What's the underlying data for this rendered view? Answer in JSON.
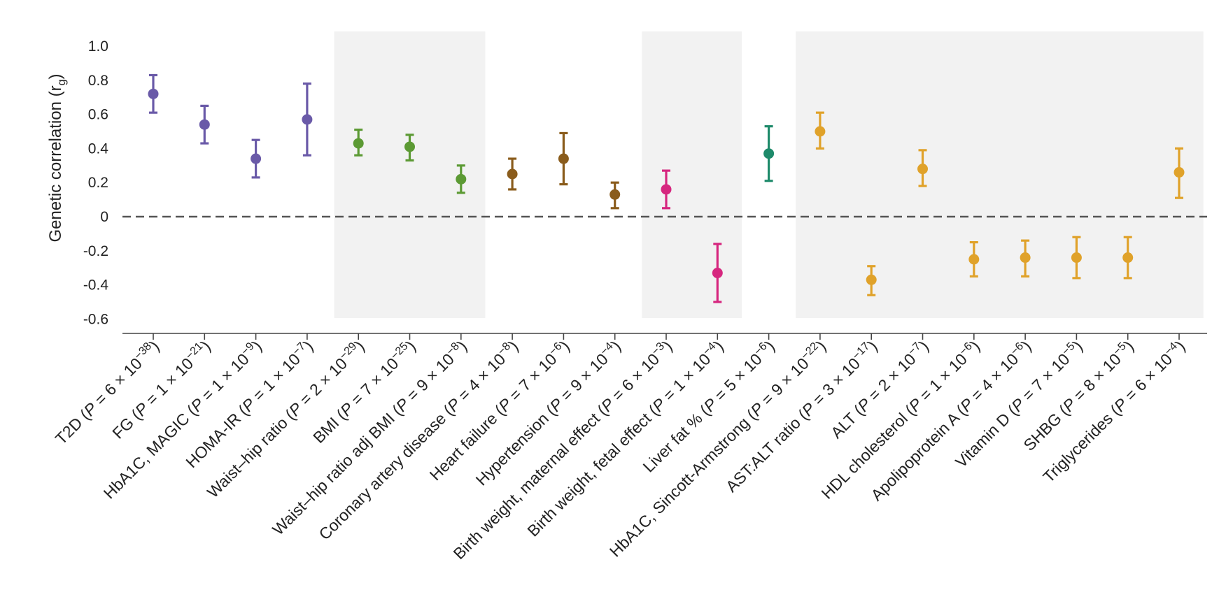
{
  "chart_data": {
    "type": "scatter",
    "subtype": "point-with-error-bars",
    "ylabel": "Genetic correlation (r",
    "ylabel_sub": "g",
    "ylabel_close": ")",
    "ylim": [
      -0.6,
      1.0
    ],
    "yticks": [
      {
        "value": 1.0,
        "label": "1.0"
      },
      {
        "value": 0.8,
        "label": "0.8"
      },
      {
        "value": 0.6,
        "label": "0.6"
      },
      {
        "value": 0.4,
        "label": "0.4"
      },
      {
        "value": 0.2,
        "label": "0.2"
      },
      {
        "value": 0.0,
        "label": "0"
      },
      {
        "value": -0.2,
        "label": "-0.2"
      },
      {
        "value": -0.4,
        "label": "-0.4"
      },
      {
        "value": -0.6,
        "label": "-0.6"
      }
    ],
    "reference_line": {
      "value": 0,
      "style": "dashed"
    },
    "shaded_groups": [
      {
        "from": 4,
        "to": 6
      },
      {
        "from": 10,
        "to": 11
      },
      {
        "from": 13,
        "to": 20
      }
    ],
    "colors": {
      "glycemic": "#6a5aa8",
      "adiposity": "#5c9a34",
      "cardiovascular": "#8a5c1c",
      "birth": "#d6277f",
      "hba1c_sa": "#1e8a6a",
      "liver": "#e0a22a"
    },
    "points": [
      {
        "trait": "T2D",
        "p_coef": "6",
        "p_exp": "−38",
        "value": 0.72,
        "lower": 0.61,
        "upper": 0.83,
        "group": "glycemic"
      },
      {
        "trait": "FG",
        "p_coef": "1",
        "p_exp": "−21",
        "value": 0.54,
        "lower": 0.43,
        "upper": 0.65,
        "group": "glycemic"
      },
      {
        "trait": "HbA1C, MAGIC",
        "p_coef": "1",
        "p_exp": "−9",
        "value": 0.34,
        "lower": 0.23,
        "upper": 0.45,
        "group": "glycemic"
      },
      {
        "trait": "HOMA-IR",
        "p_coef": "1",
        "p_exp": "−7",
        "value": 0.57,
        "lower": 0.36,
        "upper": 0.78,
        "group": "glycemic"
      },
      {
        "trait": "Waist–hip ratio",
        "p_coef": "2",
        "p_exp": "−29",
        "value": 0.43,
        "lower": 0.36,
        "upper": 0.51,
        "group": "adiposity"
      },
      {
        "trait": "BMI",
        "p_coef": "7",
        "p_exp": "−25",
        "value": 0.41,
        "lower": 0.33,
        "upper": 0.48,
        "group": "adiposity"
      },
      {
        "trait": "Waist–hip ratio adj BMI",
        "p_coef": "9",
        "p_exp": "−8",
        "value": 0.22,
        "lower": 0.14,
        "upper": 0.3,
        "group": "adiposity"
      },
      {
        "trait": "Coronary artery disease",
        "p_coef": "4",
        "p_exp": "−8",
        "value": 0.25,
        "lower": 0.16,
        "upper": 0.34,
        "group": "cardiovascular"
      },
      {
        "trait": "Heart failure",
        "p_coef": "7",
        "p_exp": "−6",
        "value": 0.34,
        "lower": 0.19,
        "upper": 0.49,
        "group": "cardiovascular"
      },
      {
        "trait": "Hypertension",
        "p_coef": "9",
        "p_exp": "−4",
        "value": 0.13,
        "lower": 0.05,
        "upper": 0.2,
        "group": "cardiovascular"
      },
      {
        "trait": "Birth weight, maternal effect",
        "p_coef": "6",
        "p_exp": "−3",
        "value": 0.16,
        "lower": 0.05,
        "upper": 0.27,
        "group": "birth"
      },
      {
        "trait": "Birth weight, fetal effect",
        "p_coef": "1",
        "p_exp": "−4",
        "value": -0.33,
        "lower": -0.5,
        "upper": -0.16,
        "group": "birth"
      },
      {
        "trait": "Liver fat %",
        "p_coef": "5",
        "p_exp": "−6",
        "value": 0.37,
        "lower": 0.21,
        "upper": 0.53,
        "group": "hba1c_sa"
      },
      {
        "trait": "HbA1C, Sincott-Armstrong",
        "p_coef": "9",
        "p_exp": "−22",
        "value": 0.5,
        "lower": 0.4,
        "upper": 0.61,
        "group": "liver"
      },
      {
        "trait": "AST:ALT ratio",
        "p_coef": "3",
        "p_exp": "−17",
        "value": -0.37,
        "lower": -0.46,
        "upper": -0.29,
        "group": "liver"
      },
      {
        "trait": "ALT",
        "p_coef": "2",
        "p_exp": "−7",
        "value": 0.28,
        "lower": 0.18,
        "upper": 0.39,
        "group": "liver"
      },
      {
        "trait": "HDL cholesterol",
        "p_coef": "1",
        "p_exp": "−6",
        "value": -0.25,
        "lower": -0.35,
        "upper": -0.15,
        "group": "liver"
      },
      {
        "trait": "Apolipoprotein A",
        "p_coef": "4",
        "p_exp": "−6",
        "value": -0.24,
        "lower": -0.35,
        "upper": -0.14,
        "group": "liver"
      },
      {
        "trait": "Vitamin D",
        "p_coef": "7",
        "p_exp": "−5",
        "value": -0.24,
        "lower": -0.36,
        "upper": -0.12,
        "group": "liver"
      },
      {
        "trait": "SHBG",
        "p_coef": "8",
        "p_exp": "−5",
        "value": -0.24,
        "lower": -0.36,
        "upper": -0.12,
        "group": "liver"
      },
      {
        "trait": "Triglycerides",
        "p_coef": "6",
        "p_exp": "−4",
        "value": 0.26,
        "lower": 0.11,
        "upper": 0.4,
        "group": "liver"
      }
    ]
  }
}
